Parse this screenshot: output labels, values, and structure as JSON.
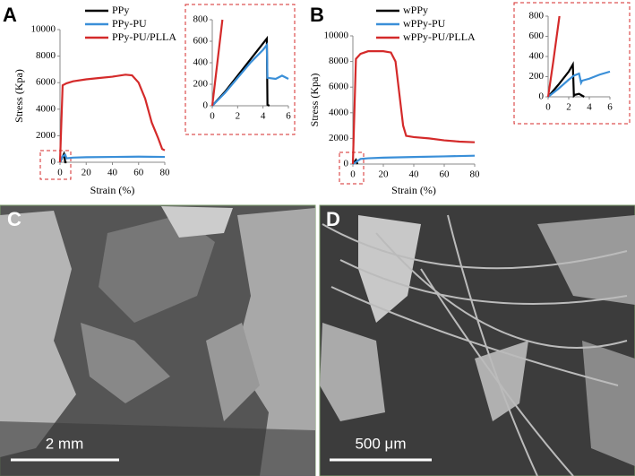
{
  "chart_data": [
    {
      "type": "line",
      "panel": "A",
      "xlabel": "Strain (%)",
      "ylabel": "Stress (Kpa)",
      "xlim": [
        0,
        80
      ],
      "xticks": [
        0,
        20,
        40,
        60,
        80
      ],
      "ylim": [
        0,
        10000
      ],
      "yticks": [
        0,
        2000,
        4000,
        6000,
        8000,
        10000
      ],
      "series": [
        {
          "name": "PPy",
          "color": "#000000",
          "x": [
            0,
            3,
            4,
            5
          ],
          "values": [
            0,
            620,
            0,
            0
          ]
        },
        {
          "name": "PPy-PU",
          "color": "#3a8fd8",
          "x": [
            0,
            2,
            4,
            5,
            10,
            20,
            40,
            60,
            80
          ],
          "values": [
            0,
            450,
            560,
            300,
            350,
            380,
            400,
            420,
            400
          ]
        },
        {
          "name": "PPy-PU/PLLA",
          "color": "#d42a2a",
          "x": [
            0,
            2,
            5,
            10,
            20,
            30,
            40,
            50,
            55,
            60,
            65,
            70,
            75,
            78,
            80
          ],
          "values": [
            0,
            5800,
            5950,
            6100,
            6250,
            6350,
            6450,
            6600,
            6550,
            6000,
            4800,
            3000,
            1800,
            1000,
            900
          ]
        }
      ]
    },
    {
      "type": "line",
      "xlim": [
        0,
        6
      ],
      "xticks": [
        0,
        2,
        4,
        6
      ],
      "ylim": [
        0,
        800
      ],
      "yticks": [
        0,
        200,
        400,
        600,
        800
      ],
      "series": [
        {
          "color": "#000000",
          "x": [
            0,
            1,
            2,
            3,
            4,
            4.3,
            4.35,
            4.5
          ],
          "values": [
            0,
            130,
            280,
            430,
            580,
            625,
            10,
            0
          ]
        },
        {
          "color": "#3a8fd8",
          "x": [
            0,
            1,
            2,
            3,
            4,
            4.3,
            4.35,
            5,
            5.5,
            6
          ],
          "values": [
            0,
            120,
            260,
            400,
            520,
            565,
            260,
            250,
            280,
            250
          ]
        },
        {
          "color": "#d42a2a",
          "x": [
            0,
            0.4,
            0.8
          ],
          "values": [
            0,
            400,
            800
          ]
        }
      ]
    },
    {
      "type": "line",
      "panel": "B",
      "xlabel": "Strain (%)",
      "ylabel": "Stress (Kpa)",
      "xlim": [
        0,
        80
      ],
      "xticks": [
        0,
        20,
        40,
        60,
        80
      ],
      "ylim": [
        0,
        10000
      ],
      "yticks": [
        0,
        2000,
        4000,
        6000,
        8000,
        10000
      ],
      "series": [
        {
          "name": "wPPy",
          "color": "#000000",
          "x": [
            0,
            2,
            3
          ],
          "values": [
            0,
            320,
            0
          ]
        },
        {
          "name": "wPPy-PU",
          "color": "#3a8fd8",
          "x": [
            0,
            5,
            10,
            20,
            40,
            60,
            80
          ],
          "values": [
            0,
            400,
            450,
            500,
            550,
            600,
            650
          ]
        },
        {
          "name": "wPPy-PU/PLLA",
          "color": "#d42a2a",
          "x": [
            0,
            2,
            5,
            10,
            20,
            25,
            28,
            30,
            33,
            35,
            40,
            50,
            60,
            70,
            80
          ],
          "values": [
            0,
            8200,
            8600,
            8800,
            8800,
            8700,
            8000,
            6000,
            3000,
            2200,
            2100,
            2000,
            1850,
            1750,
            1700
          ]
        }
      ]
    },
    {
      "type": "line",
      "xlim": [
        0,
        6
      ],
      "xticks": [
        0,
        2,
        4,
        6
      ],
      "ylim": [
        0,
        800
      ],
      "yticks": [
        0,
        200,
        400,
        600,
        800
      ],
      "series": [
        {
          "color": "#000000",
          "x": [
            0,
            1,
            2,
            2.4,
            2.5,
            2.6,
            3,
            3.5
          ],
          "values": [
            0,
            120,
            250,
            320,
            10,
            20,
            30,
            0
          ]
        },
        {
          "color": "#3a8fd8",
          "x": [
            0,
            1,
            2,
            2.5,
            3,
            3.2,
            3.3,
            4,
            5,
            6
          ],
          "values": [
            0,
            80,
            170,
            210,
            230,
            140,
            160,
            180,
            220,
            250
          ]
        },
        {
          "color": "#d42a2a",
          "x": [
            0,
            0.5,
            1.1
          ],
          "values": [
            0,
            350,
            800
          ]
        }
      ]
    }
  ],
  "images": [
    {
      "label": "C",
      "scale_bar": "2 mm"
    },
    {
      "label": "D",
      "scale_bar": "500 μm"
    }
  ]
}
